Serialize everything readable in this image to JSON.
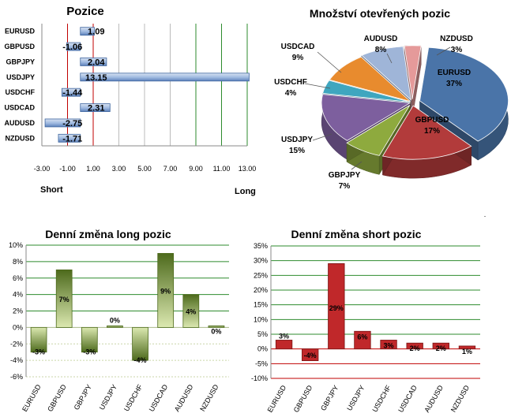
{
  "colors": {
    "grid_green": "#2e8b2e",
    "ref_red": "#c00000",
    "bar_blue": "#5b87c5",
    "long_green": "#6e8a2a",
    "short_red": "#c0282a"
  },
  "chart_data": [
    {
      "id": "pozice",
      "type": "bar",
      "orientation": "horizontal",
      "title": "Pozice",
      "categories": [
        "EURUSD",
        "GBPUSD",
        "GBPJPY",
        "USDJPY",
        "USDCHF",
        "USDCAD",
        "AUDUSD",
        "NZDUSD"
      ],
      "values": [
        1.09,
        -1.06,
        2.04,
        13.15,
        -1.44,
        2.31,
        -2.75,
        -1.71
      ],
      "value_labels": [
        "1.09",
        "-1.06",
        "2.04",
        "13.15",
        "-1.44",
        "2.31",
        "-2.75",
        "-1.71"
      ],
      "xlim": [
        -3,
        13
      ],
      "xticks": [
        "-3.00",
        "-1.00",
        "1.00",
        "3.00",
        "5.00",
        "7.00",
        "9.00",
        "11.00",
        "13.00"
      ],
      "left_caption": "Short",
      "right_caption": "Long"
    },
    {
      "id": "mnozstvi",
      "type": "pie",
      "title": "Množství otevřených pozic",
      "slices": [
        {
          "name": "EURUSD",
          "value": 37,
          "label": "37%",
          "color": "#4a74a8"
        },
        {
          "name": "GBPUSD",
          "value": 17,
          "label": "17%",
          "color": "#b23b3b"
        },
        {
          "name": "GBPJPY",
          "value": 7,
          "label": "7%",
          "color": "#8eaa3e"
        },
        {
          "name": "USDJPY",
          "value": 15,
          "label": "15%",
          "color": "#7d5f9e"
        },
        {
          "name": "USDCHF",
          "value": 4,
          "label": "4%",
          "color": "#3fa6bf"
        },
        {
          "name": "USDCAD",
          "value": 9,
          "label": "9%",
          "color": "#e88b2e"
        },
        {
          "name": "AUDUSD",
          "value": 8,
          "label": "8%",
          "color": "#9fb5d8"
        },
        {
          "name": "NZDUSD",
          "value": 3,
          "label": "3%",
          "color": "#e59a9a"
        }
      ]
    },
    {
      "id": "long",
      "type": "bar",
      "title": "Denní změna long pozic",
      "categories": [
        "EURUSD",
        "GBPUSD",
        "GBPJPY",
        "USDJPY",
        "USDCHF",
        "USDCAD",
        "AUDUSD",
        "NZDUSD"
      ],
      "values": [
        -3,
        7,
        -3,
        0,
        -4,
        9,
        4,
        0
      ],
      "value_labels": [
        "-3%",
        "7%",
        "-3%",
        "0%",
        "-4%",
        "9%",
        "4%",
        "0%"
      ],
      "ylim": [
        -6,
        10
      ],
      "yticks": [
        "-6%",
        "-4%",
        "-2%",
        "0%",
        "2%",
        "4%",
        "6%",
        "8%",
        "10%"
      ]
    },
    {
      "id": "short",
      "type": "bar",
      "title": "Denní změna short pozic",
      "categories": [
        "EURUSD",
        "GBPUSD",
        "GBPJPY",
        "USDJPY",
        "USDCHF",
        "USDCAD",
        "AUDUSD",
        "NZDUSD"
      ],
      "values": [
        3,
        -4,
        29,
        6,
        3,
        2,
        2,
        1
      ],
      "value_labels": [
        "3%",
        "-4%",
        "29%",
        "6%",
        "3%",
        "2%",
        "2%",
        "1%"
      ],
      "ylim": [
        -10,
        35
      ],
      "yticks": [
        "-10%",
        "-5%",
        "0%",
        "5%",
        "10%",
        "15%",
        "20%",
        "25%",
        "30%",
        "35%"
      ]
    }
  ]
}
